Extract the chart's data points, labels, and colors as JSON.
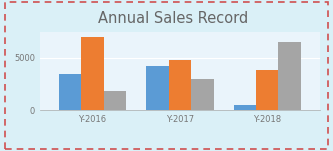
{
  "title": "Annual Sales Record",
  "categories": [
    "Y-2016",
    "Y-2017",
    "Y-2018"
  ],
  "series": {
    "Mobile Phones": [
      3500,
      4200,
      500
    ],
    "Laptops": [
      7000,
      4800,
      3800
    ],
    "Tablets": [
      1800,
      3000,
      6500
    ]
  },
  "series_colors": {
    "Mobile Phones": "#5B9BD5",
    "Laptops": "#ED7D31",
    "Tablets": "#A5A5A5"
  },
  "ylim": [
    0,
    7500
  ],
  "yticks": [
    0,
    5000
  ],
  "outer_bg": "#DAF0F7",
  "plot_bg": "#EAF4FB",
  "border_color": "#D05050",
  "title_color": "#666666",
  "title_fontsize": 10.5,
  "legend_fontsize": 6.5,
  "tick_fontsize": 6,
  "bar_width": 0.18,
  "group_positions": [
    0.3,
    1.0,
    1.7
  ]
}
